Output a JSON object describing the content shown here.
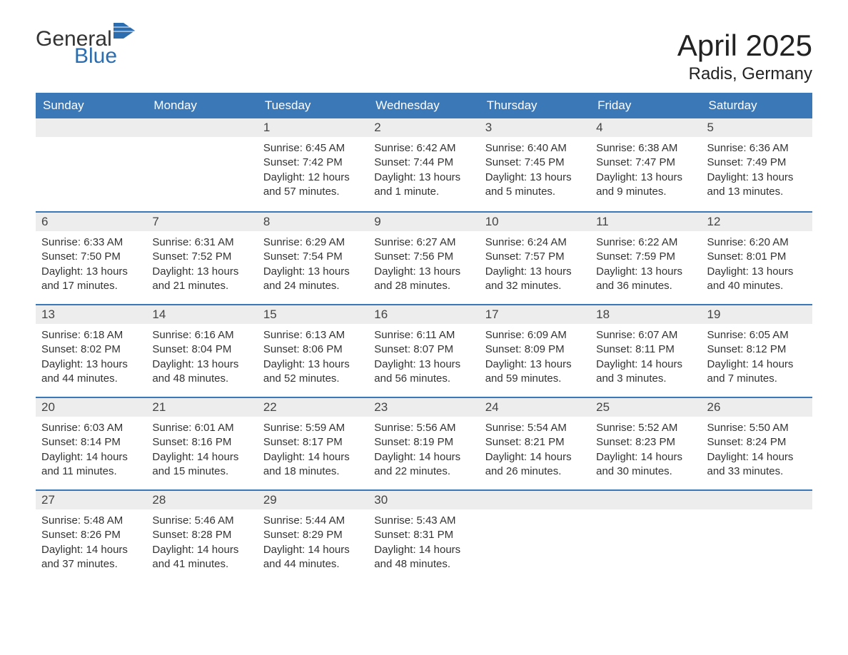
{
  "logo": {
    "general": "General",
    "blue": "Blue",
    "flag_color": "#2b6daf"
  },
  "title": "April 2025",
  "location": "Radis, Germany",
  "header_bg": "#3b78b8",
  "daynum_bg": "#ededed",
  "row_border": "#3b78b8",
  "columns": [
    "Sunday",
    "Monday",
    "Tuesday",
    "Wednesday",
    "Thursday",
    "Friday",
    "Saturday"
  ],
  "weeks": [
    [
      null,
      null,
      {
        "n": "1",
        "sr": "6:45 AM",
        "ss": "7:42 PM",
        "dl": "12 hours and 57 minutes."
      },
      {
        "n": "2",
        "sr": "6:42 AM",
        "ss": "7:44 PM",
        "dl": "13 hours and 1 minute."
      },
      {
        "n": "3",
        "sr": "6:40 AM",
        "ss": "7:45 PM",
        "dl": "13 hours and 5 minutes."
      },
      {
        "n": "4",
        "sr": "6:38 AM",
        "ss": "7:47 PM",
        "dl": "13 hours and 9 minutes."
      },
      {
        "n": "5",
        "sr": "6:36 AM",
        "ss": "7:49 PM",
        "dl": "13 hours and 13 minutes."
      }
    ],
    [
      {
        "n": "6",
        "sr": "6:33 AM",
        "ss": "7:50 PM",
        "dl": "13 hours and 17 minutes."
      },
      {
        "n": "7",
        "sr": "6:31 AM",
        "ss": "7:52 PM",
        "dl": "13 hours and 21 minutes."
      },
      {
        "n": "8",
        "sr": "6:29 AM",
        "ss": "7:54 PM",
        "dl": "13 hours and 24 minutes."
      },
      {
        "n": "9",
        "sr": "6:27 AM",
        "ss": "7:56 PM",
        "dl": "13 hours and 28 minutes."
      },
      {
        "n": "10",
        "sr": "6:24 AM",
        "ss": "7:57 PM",
        "dl": "13 hours and 32 minutes."
      },
      {
        "n": "11",
        "sr": "6:22 AM",
        "ss": "7:59 PM",
        "dl": "13 hours and 36 minutes."
      },
      {
        "n": "12",
        "sr": "6:20 AM",
        "ss": "8:01 PM",
        "dl": "13 hours and 40 minutes."
      }
    ],
    [
      {
        "n": "13",
        "sr": "6:18 AM",
        "ss": "8:02 PM",
        "dl": "13 hours and 44 minutes."
      },
      {
        "n": "14",
        "sr": "6:16 AM",
        "ss": "8:04 PM",
        "dl": "13 hours and 48 minutes."
      },
      {
        "n": "15",
        "sr": "6:13 AM",
        "ss": "8:06 PM",
        "dl": "13 hours and 52 minutes."
      },
      {
        "n": "16",
        "sr": "6:11 AM",
        "ss": "8:07 PM",
        "dl": "13 hours and 56 minutes."
      },
      {
        "n": "17",
        "sr": "6:09 AM",
        "ss": "8:09 PM",
        "dl": "13 hours and 59 minutes."
      },
      {
        "n": "18",
        "sr": "6:07 AM",
        "ss": "8:11 PM",
        "dl": "14 hours and 3 minutes."
      },
      {
        "n": "19",
        "sr": "6:05 AM",
        "ss": "8:12 PM",
        "dl": "14 hours and 7 minutes."
      }
    ],
    [
      {
        "n": "20",
        "sr": "6:03 AM",
        "ss": "8:14 PM",
        "dl": "14 hours and 11 minutes."
      },
      {
        "n": "21",
        "sr": "6:01 AM",
        "ss": "8:16 PM",
        "dl": "14 hours and 15 minutes."
      },
      {
        "n": "22",
        "sr": "5:59 AM",
        "ss": "8:17 PM",
        "dl": "14 hours and 18 minutes."
      },
      {
        "n": "23",
        "sr": "5:56 AM",
        "ss": "8:19 PM",
        "dl": "14 hours and 22 minutes."
      },
      {
        "n": "24",
        "sr": "5:54 AM",
        "ss": "8:21 PM",
        "dl": "14 hours and 26 minutes."
      },
      {
        "n": "25",
        "sr": "5:52 AM",
        "ss": "8:23 PM",
        "dl": "14 hours and 30 minutes."
      },
      {
        "n": "26",
        "sr": "5:50 AM",
        "ss": "8:24 PM",
        "dl": "14 hours and 33 minutes."
      }
    ],
    [
      {
        "n": "27",
        "sr": "5:48 AM",
        "ss": "8:26 PM",
        "dl": "14 hours and 37 minutes."
      },
      {
        "n": "28",
        "sr": "5:46 AM",
        "ss": "8:28 PM",
        "dl": "14 hours and 41 minutes."
      },
      {
        "n": "29",
        "sr": "5:44 AM",
        "ss": "8:29 PM",
        "dl": "14 hours and 44 minutes."
      },
      {
        "n": "30",
        "sr": "5:43 AM",
        "ss": "8:31 PM",
        "dl": "14 hours and 48 minutes."
      },
      null,
      null,
      null
    ]
  ],
  "labels": {
    "sunrise": "Sunrise: ",
    "sunset": "Sunset: ",
    "daylight": "Daylight: "
  }
}
